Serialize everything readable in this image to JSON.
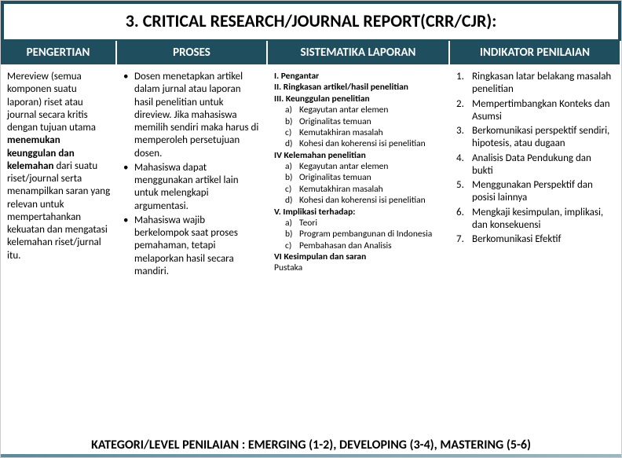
{
  "title": "3. CRITICAL RESEARCH/JOURNAL REPORT(CRR/CJR):",
  "headers": {
    "col1": "PENGERTIAN",
    "col2": "PROSES",
    "col3": "SISTEMATIKA LAPORAN",
    "col4": "INDIKATOR PENILAIAN"
  },
  "pengertian": {
    "pre": "Mereview (semua komponen suatu laporan) riset atau journal secara kritis dengan tujuan utama ",
    "bold1": "menemukan keunggulan dan kelemahan",
    "post": " dari suatu riset/journal serta menampilkan saran yang relevan untuk mempertahankan kekuatan dan mengatasi kelemahan riset/jurnal itu."
  },
  "proses": [
    "Dosen menetapkan artikel dalam jurnal atau laporan hasil penelitian untuk direview. Jika mahasiswa memilih sendiri maka harus di memperoleh persetujuan dosen.",
    "Mahasiswa dapat menggunakan artikel lain  untuk melengkapi argumentasi.",
    "Mahasiswa wajib berkelompok saat proses pemahaman, tetapi melaporkan hasil secara mandiri."
  ],
  "sistematika": {
    "s1": "I. Pengantar",
    "s2": "II. Ringkasan artikel/hasil penelitian",
    "s3": "III. Keunggulan penelitian",
    "s3a": "Kegayutan antar elemen",
    "s3b": "Originalitas temuan",
    "s3c": "Kemutakhiran masalah",
    "s3d": "Kohesi dan koherensi isi penelitian",
    "s4": "IV Kelemahan penelitian",
    "s4a": "Kegayutan antar elemen",
    "s4b": "Originalitas temuan",
    "s4c": "Kemutakhiran masalah",
    "s4d": "Kohesi dan koherensi isi penelitian",
    "s5": "V. Implikasi terhadap:",
    "s5a": "Teori",
    "s5b": "Program pembangunan di Indonesia",
    "s5c": "Pembahasan dan Analisis",
    "s6": "VI Kesimpulan dan saran",
    "s7": "Pustaka"
  },
  "indikator": [
    "Ringkasan latar belakang masalah penelitian",
    "Mempertimbangkan Konteks dan Asumsi",
    "Berkomunikasi perspektif sendiri, hipotesis, atau dugaan",
    "Analisis Data Pendukung dan bukti",
    "Menggunakan Perspektif dan posisi lainnya",
    "Mengkaji kesimpulan, implikasi, dan konsekuensi",
    "Berkomunikasi Efektif"
  ],
  "footer": "KATEGORI/LEVEL PENILAIAN : EMERGING (1-2), DEVELOPING (3-4), MASTERING (5-6)",
  "colors": {
    "header_bg": "#1f4e5f",
    "header_text": "#ffffff",
    "body_text": "#000000",
    "accent": "#c00000"
  }
}
